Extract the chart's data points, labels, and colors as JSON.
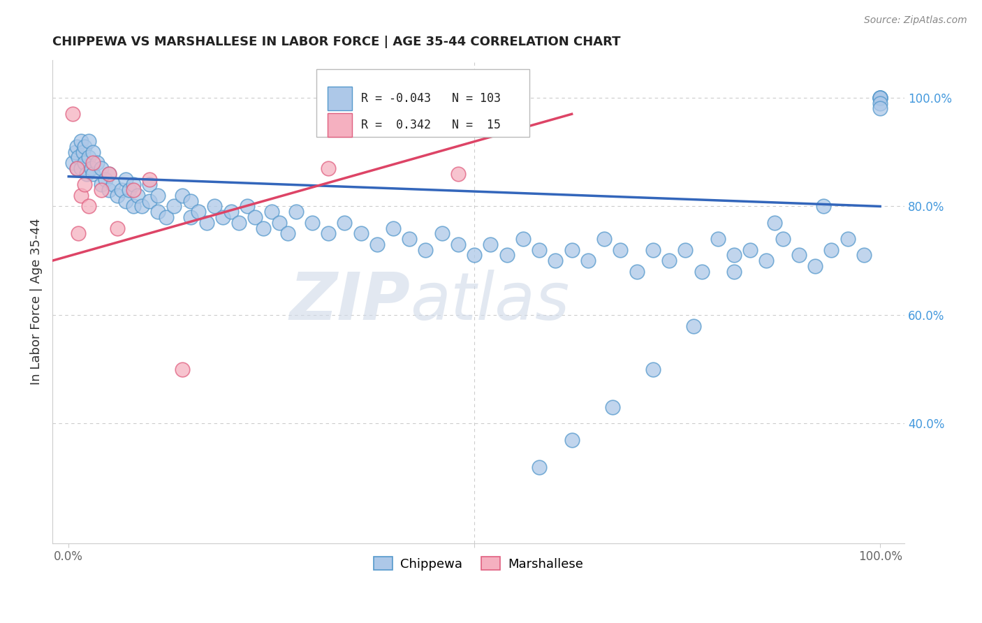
{
  "title": "CHIPPEWA VS MARSHALLESE IN LABOR FORCE | AGE 35-44 CORRELATION CHART",
  "source": "Source: ZipAtlas.com",
  "ylabel": "In Labor Force | Age 35-44",
  "xlim": [
    -0.02,
    1.03
  ],
  "ylim": [
    0.18,
    1.07
  ],
  "chippewa_R": -0.043,
  "chippewa_N": 103,
  "marshallese_R": 0.342,
  "marshallese_N": 15,
  "chippewa_color": "#adc8e8",
  "marshallese_color": "#f5b0c0",
  "chippewa_edge_color": "#5599cc",
  "marshallese_edge_color": "#e06080",
  "chippewa_line_color": "#3366bb",
  "marshallese_line_color": "#dd4466",
  "background_color": "#ffffff",
  "watermark_color": "#d0dae8",
  "grid_color": "#cccccc",
  "right_tick_color": "#4499dd",
  "title_color": "#222222",
  "source_color": "#888888",
  "ylabel_color": "#333333",
  "chippewa_x": [
    0.005,
    0.008,
    0.01,
    0.01,
    0.012,
    0.015,
    0.015,
    0.018,
    0.02,
    0.02,
    0.022,
    0.025,
    0.025,
    0.028,
    0.03,
    0.03,
    0.035,
    0.04,
    0.04,
    0.045,
    0.05,
    0.05,
    0.055,
    0.06,
    0.065,
    0.07,
    0.07,
    0.075,
    0.08,
    0.08,
    0.085,
    0.09,
    0.1,
    0.1,
    0.11,
    0.11,
    0.12,
    0.13,
    0.14,
    0.15,
    0.15,
    0.16,
    0.17,
    0.18,
    0.19,
    0.2,
    0.21,
    0.22,
    0.23,
    0.24,
    0.25,
    0.26,
    0.27,
    0.28,
    0.3,
    0.32,
    0.34,
    0.36,
    0.38,
    0.4,
    0.42,
    0.44,
    0.46,
    0.48,
    0.5,
    0.52,
    0.54,
    0.56,
    0.58,
    0.6,
    0.62,
    0.64,
    0.66,
    0.68,
    0.7,
    0.72,
    0.74,
    0.76,
    0.78,
    0.8,
    0.82,
    0.84,
    0.86,
    0.88,
    0.9,
    0.92,
    0.94,
    0.96,
    0.98,
    1.0,
    1.0,
    1.0,
    1.0,
    1.0,
    1.0,
    0.93,
    0.87,
    0.82,
    0.77,
    0.72,
    0.67,
    0.62,
    0.58
  ],
  "chippewa_y": [
    0.88,
    0.9,
    0.87,
    0.91,
    0.89,
    0.87,
    0.92,
    0.9,
    0.88,
    0.91,
    0.86,
    0.89,
    0.92,
    0.87,
    0.86,
    0.9,
    0.88,
    0.84,
    0.87,
    0.85,
    0.83,
    0.86,
    0.84,
    0.82,
    0.83,
    0.81,
    0.85,
    0.83,
    0.8,
    0.84,
    0.82,
    0.8,
    0.84,
    0.81,
    0.79,
    0.82,
    0.78,
    0.8,
    0.82,
    0.78,
    0.81,
    0.79,
    0.77,
    0.8,
    0.78,
    0.79,
    0.77,
    0.8,
    0.78,
    0.76,
    0.79,
    0.77,
    0.75,
    0.79,
    0.77,
    0.75,
    0.77,
    0.75,
    0.73,
    0.76,
    0.74,
    0.72,
    0.75,
    0.73,
    0.71,
    0.73,
    0.71,
    0.74,
    0.72,
    0.7,
    0.72,
    0.7,
    0.74,
    0.72,
    0.68,
    0.72,
    0.7,
    0.72,
    0.68,
    0.74,
    0.71,
    0.72,
    0.7,
    0.74,
    0.71,
    0.69,
    0.72,
    0.74,
    0.71,
    1.0,
    1.0,
    1.0,
    1.0,
    0.99,
    0.98,
    0.8,
    0.77,
    0.68,
    0.58,
    0.5,
    0.43,
    0.37,
    0.32
  ],
  "marshallese_x": [
    0.005,
    0.01,
    0.012,
    0.015,
    0.02,
    0.025,
    0.03,
    0.04,
    0.05,
    0.06,
    0.08,
    0.1,
    0.14,
    0.32,
    0.48
  ],
  "marshallese_y": [
    0.97,
    0.87,
    0.75,
    0.82,
    0.84,
    0.8,
    0.88,
    0.83,
    0.86,
    0.76,
    0.83,
    0.85,
    0.5,
    0.87,
    0.86
  ],
  "chip_trend_x": [
    0.0,
    1.0
  ],
  "chip_trend_y": [
    0.855,
    0.8
  ],
  "marsh_trend_x": [
    -0.02,
    0.62
  ],
  "marsh_trend_y": [
    0.7,
    0.97
  ],
  "legend_chip_text": "R = -0.043   N = 103",
  "legend_marsh_text": "R =  0.342   N =  15"
}
